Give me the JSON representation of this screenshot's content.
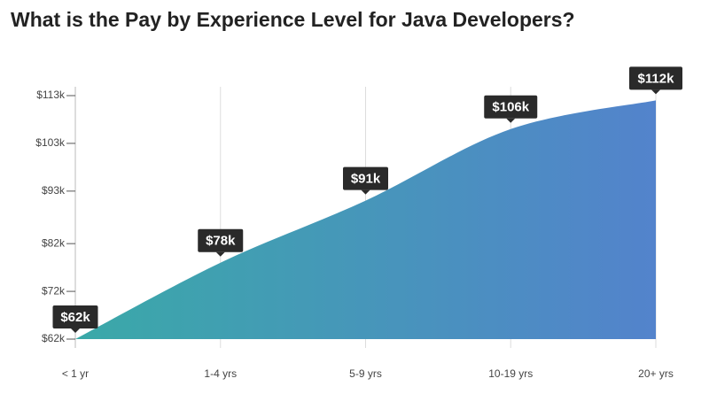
{
  "chart_data": {
    "type": "area",
    "title": "What is the Pay by Experience Level for Java Developers?",
    "categories": [
      "< 1 yr",
      "1-4 yrs",
      "5-9 yrs",
      "10-19 yrs",
      "20+ yrs"
    ],
    "values": [
      62,
      78,
      91,
      106,
      112
    ],
    "value_labels": [
      "$62k",
      "$78k",
      "$91k",
      "$106k",
      "$112k"
    ],
    "colors": [
      "#3aa9a8",
      "#5383cc"
    ],
    "ylim": [
      62,
      113
    ],
    "yticks": [
      {
        "value": 62,
        "label": "$62k"
      },
      {
        "value": 72,
        "label": "$72k"
      },
      {
        "value": 82,
        "label": "$82k"
      },
      {
        "value": 93,
        "label": "$93k"
      },
      {
        "value": 103,
        "label": "$103k"
      },
      {
        "value": 113,
        "label": "$113k"
      }
    ],
    "grid": true
  }
}
